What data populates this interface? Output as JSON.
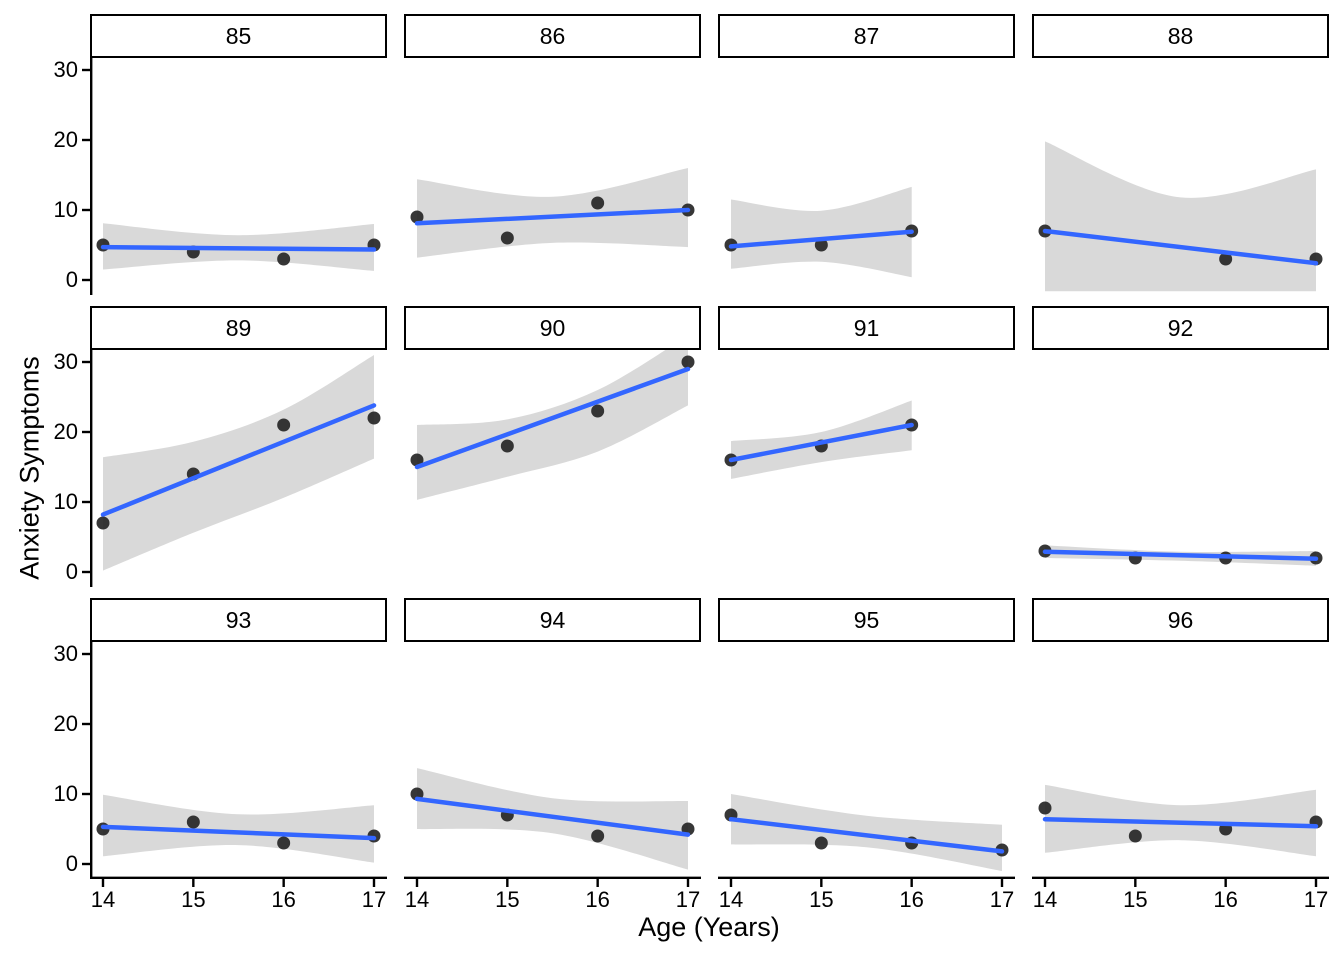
{
  "chart_data": {
    "type": "scatter",
    "title": "",
    "xlabel": "Age (Years)",
    "ylabel": "Anxiety Symptoms",
    "x_ticks": [
      14,
      15,
      16,
      17
    ],
    "y_ticks": [
      0,
      10,
      20,
      30
    ],
    "xlim": [
      13.85,
      17.15
    ],
    "ylim": [
      -2.1,
      31.7
    ],
    "grid": "off",
    "legend": "none",
    "smoother": "linear fit with confidence band",
    "facet_layout": {
      "rows": 3,
      "cols": 4
    },
    "colors": {
      "fit_line": "#3366FF",
      "confidence_band": "#D9D9D9",
      "points": "#262626",
      "axis": "#000000",
      "strip_background": "#FFFFFF",
      "strip_border": "#000000"
    },
    "facets": [
      {
        "label": "85",
        "points": [
          [
            14,
            5
          ],
          [
            15,
            4
          ],
          [
            16,
            3
          ],
          [
            17,
            5
          ]
        ],
        "line": {
          "x": [
            14,
            17
          ],
          "y": [
            4.7,
            4.35
          ]
        },
        "band": {
          "x": [
            14,
            15.5,
            17
          ],
          "hi": [
            8.1,
            6.4,
            8.0
          ],
          "lo": [
            1.5,
            2.8,
            1.3
          ]
        }
      },
      {
        "label": "86",
        "points": [
          [
            14,
            9
          ],
          [
            15,
            6
          ],
          [
            16,
            11
          ],
          [
            17,
            10
          ]
        ],
        "line": {
          "x": [
            14,
            17
          ],
          "y": [
            8.1,
            10.0
          ]
        },
        "band": {
          "x": [
            14,
            15.5,
            17
          ],
          "hi": [
            14.4,
            11.9,
            16.0
          ],
          "lo": [
            3.2,
            5.3,
            4.7
          ]
        }
      },
      {
        "label": "87",
        "points": [
          [
            14,
            5
          ],
          [
            15,
            5
          ],
          [
            16,
            7
          ]
        ],
        "line": {
          "x": [
            14,
            16
          ],
          "y": [
            4.8,
            6.9
          ]
        },
        "band": {
          "x": [
            14,
            15,
            16
          ],
          "hi": [
            11.5,
            9.9,
            13.3
          ],
          "lo": [
            1.6,
            2.6,
            0.4
          ]
        }
      },
      {
        "label": "88",
        "points": [
          [
            14,
            7
          ],
          [
            16,
            3
          ],
          [
            17,
            3
          ]
        ],
        "line": {
          "x": [
            14,
            17
          ],
          "y": [
            7.0,
            2.4
          ]
        },
        "band": {
          "x": [
            14,
            15.5,
            17
          ],
          "hi": [
            19.8,
            11.8,
            15.8
          ],
          "lo": [
            -1.6,
            -1.6,
            -1.6
          ]
        }
      },
      {
        "label": "89",
        "points": [
          [
            14,
            7
          ],
          [
            15,
            14
          ],
          [
            16,
            21
          ],
          [
            17,
            22
          ]
        ],
        "line": {
          "x": [
            14,
            17
          ],
          "y": [
            8.2,
            23.8
          ]
        },
        "band": {
          "x": [
            14,
            15,
            16,
            17
          ],
          "hi": [
            16.4,
            18.6,
            23.2,
            31.0
          ],
          "lo": [
            0.2,
            5.6,
            10.6,
            16.2
          ]
        }
      },
      {
        "label": "90",
        "points": [
          [
            14,
            16
          ],
          [
            15,
            18
          ],
          [
            16,
            23
          ],
          [
            17,
            30
          ]
        ],
        "line": {
          "x": [
            14,
            17
          ],
          "y": [
            15.0,
            29.0
          ]
        },
        "band": {
          "x": [
            14,
            15,
            16,
            17
          ],
          "hi": [
            21.0,
            21.8,
            26.0,
            33.8
          ],
          "lo": [
            10.3,
            13.6,
            17.2,
            23.8
          ]
        }
      },
      {
        "label": "91",
        "points": [
          [
            14,
            16
          ],
          [
            15,
            18
          ],
          [
            16,
            21
          ]
        ],
        "line": {
          "x": [
            14,
            16
          ],
          "y": [
            16.0,
            21.0
          ]
        },
        "band": {
          "x": [
            14,
            15,
            16
          ],
          "hi": [
            18.7,
            20.0,
            24.5
          ],
          "lo": [
            13.3,
            15.7,
            17.4
          ]
        }
      },
      {
        "label": "92",
        "points": [
          [
            14,
            3
          ],
          [
            15,
            2
          ],
          [
            16,
            2
          ],
          [
            17,
            2
          ]
        ],
        "line": {
          "x": [
            14,
            17
          ],
          "y": [
            2.9,
            1.9
          ]
        },
        "band": {
          "x": [
            14,
            15.5,
            17
          ],
          "hi": [
            3.8,
            2.9,
            3.0
          ],
          "lo": [
            2.0,
            1.6,
            0.9
          ]
        }
      },
      {
        "label": "93",
        "points": [
          [
            14,
            5
          ],
          [
            15,
            6
          ],
          [
            16,
            3
          ],
          [
            17,
            4
          ]
        ],
        "line": {
          "x": [
            14,
            17
          ],
          "y": [
            5.3,
            3.7
          ]
        },
        "band": {
          "x": [
            14,
            15.5,
            17
          ],
          "hi": [
            9.9,
            7.1,
            8.4
          ],
          "lo": [
            1.1,
            2.7,
            0.2
          ]
        }
      },
      {
        "label": "94",
        "points": [
          [
            14,
            10
          ],
          [
            15,
            7
          ],
          [
            16,
            4
          ],
          [
            17,
            5
          ]
        ],
        "line": {
          "x": [
            14,
            17
          ],
          "y": [
            9.3,
            4.2
          ]
        },
        "band": {
          "x": [
            14,
            15.5,
            17
          ],
          "hi": [
            13.7,
            9.4,
            9.0
          ],
          "lo": [
            5.0,
            4.4,
            -0.8
          ]
        }
      },
      {
        "label": "95",
        "points": [
          [
            14,
            7
          ],
          [
            15,
            3
          ],
          [
            16,
            3
          ],
          [
            17,
            2
          ]
        ],
        "line": {
          "x": [
            14,
            17
          ],
          "y": [
            6.4,
            1.8
          ]
        },
        "band": {
          "x": [
            14,
            15.5,
            17
          ],
          "hi": [
            10.0,
            6.9,
            5.6
          ],
          "lo": [
            2.8,
            2.4,
            -1.0
          ]
        }
      },
      {
        "label": "96",
        "points": [
          [
            14,
            8
          ],
          [
            15,
            4
          ],
          [
            16,
            5
          ],
          [
            17,
            6
          ]
        ],
        "line": {
          "x": [
            14,
            17
          ],
          "y": [
            6.4,
            5.4
          ]
        },
        "band": {
          "x": [
            14,
            15.5,
            17
          ],
          "hi": [
            11.3,
            8.4,
            10.6
          ],
          "lo": [
            1.6,
            3.4,
            1.1
          ]
        }
      }
    ]
  }
}
